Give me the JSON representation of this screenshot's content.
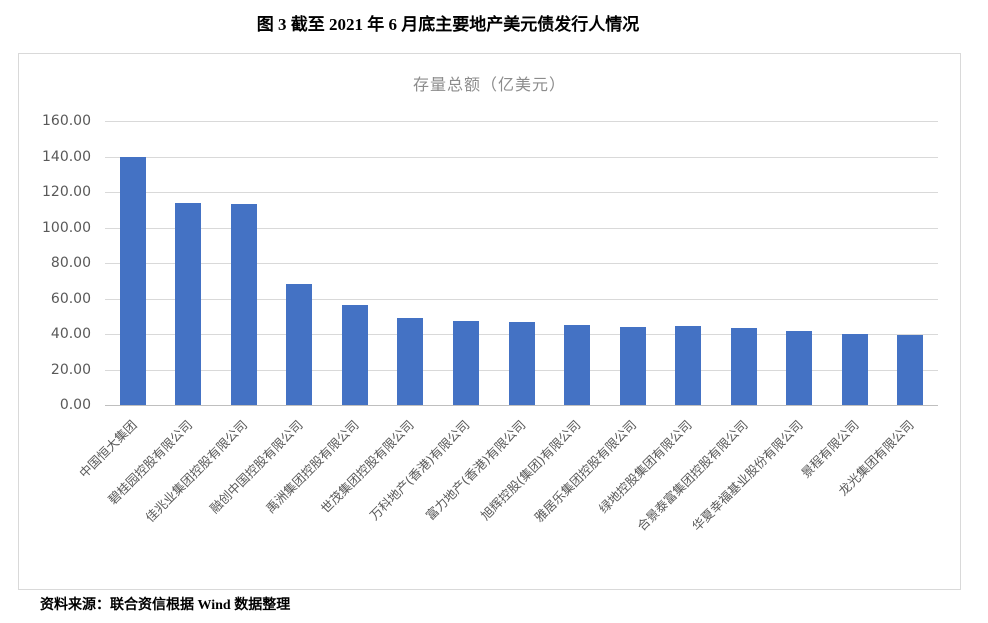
{
  "page": {
    "title": "图 3  截至 2021 年 6 月底主要地产美元债发行人情况",
    "source_note": "资料来源：联合资信根据 Wind 数据整理",
    "background": "#FFFFFF"
  },
  "chart_data": {
    "type": "bar",
    "title": "存量总额（亿美元）",
    "categories": [
      "中国恒大集团",
      "碧桂园控股有限公司",
      "佳兆业集团控股有限公司",
      "融创中国控股有限公司",
      "禹洲集团控股有限公司",
      "世茂集团控股有限公司",
      "万科地产(香港)有限公司",
      "富力地产(香港)有限公司",
      "旭辉控股(集团)有限公司",
      "雅居乐集团控股有限公司",
      "绿地控股集团有限公司",
      "合景泰富集团控股有限公司",
      "华夏幸福基业股份有限公司",
      "景程有限公司",
      "龙光集团有限公司"
    ],
    "values": [
      140,
      114,
      113,
      68,
      56.5,
      49,
      47.5,
      46.5,
      45,
      44,
      44.5,
      43.5,
      41.5,
      40,
      39.5
    ],
    "unit": "亿美元",
    "xlabel": "",
    "ylabel": "",
    "ylim": [
      0,
      160
    ],
    "ytick_interval": 20,
    "ytick_labels": [
      "0.00",
      "20.00",
      "40.00",
      "60.00",
      "80.00",
      "100.00",
      "120.00",
      "140.00",
      "160.00"
    ],
    "grid": true,
    "legend_position": "none",
    "bar_color": "#4472C4",
    "gridline_color": "#D9D9D9",
    "axis_line_color": "#BFBFBF",
    "tick_label_color": "#595959",
    "title_color": "#8C8C8C",
    "border_color": "#D9D9D9"
  }
}
